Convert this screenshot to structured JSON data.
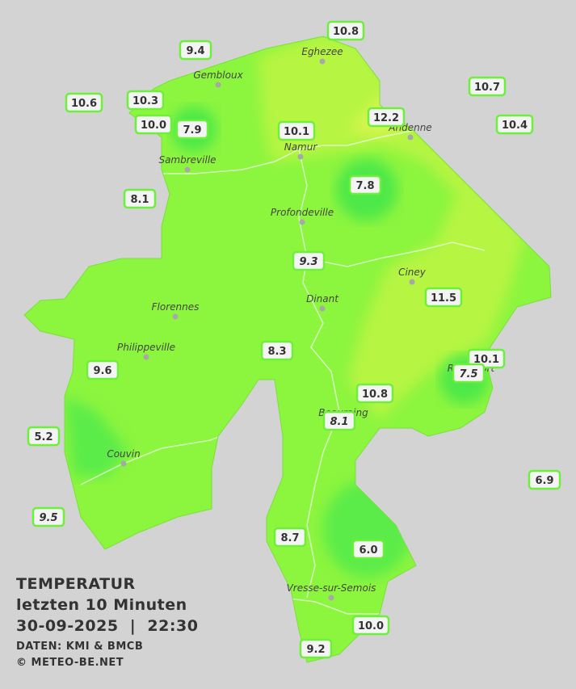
{
  "header": {
    "title": "TEMPERATUR",
    "period": "letzten 10 Minuten",
    "timestamp": "30-09-2025  |  22:30",
    "source": "DATEN: KMI & BMCB",
    "copyright": "© METEO-BE.NET"
  },
  "towns": [
    "Eghezee",
    "Gembloux",
    "Andenne",
    "Namur",
    "Sambreville",
    "Profondeville",
    "Ciney",
    "Dinant",
    "Florennes",
    "Philippeville",
    "Rochefort",
    "Beauraing",
    "Couvin",
    "Vresse-sur-Semois"
  ],
  "stations": [
    {
      "label": "10.8"
    },
    {
      "label": "9.4"
    },
    {
      "label": "10.6"
    },
    {
      "label": "10.3"
    },
    {
      "label": "10.0"
    },
    {
      "label": "7.9"
    },
    {
      "label": "10.1"
    },
    {
      "label": "12.2"
    },
    {
      "label": "10.7"
    },
    {
      "label": "10.4"
    },
    {
      "label": "7.8"
    },
    {
      "label": "8.1"
    },
    {
      "label": "9.3",
      "italic": true
    },
    {
      "label": "11.5"
    },
    {
      "label": "8.3"
    },
    {
      "label": "10.1"
    },
    {
      "label": "7.5",
      "italic": true
    },
    {
      "label": "9.6"
    },
    {
      "label": "10.8"
    },
    {
      "label": "8.1",
      "italic": true
    },
    {
      "label": "5.2"
    },
    {
      "label": "6.9"
    },
    {
      "label": "9.5",
      "italic": true
    },
    {
      "label": "8.7"
    },
    {
      "label": "6.0"
    },
    {
      "label": "10.0"
    },
    {
      "label": "9.2"
    }
  ]
}
